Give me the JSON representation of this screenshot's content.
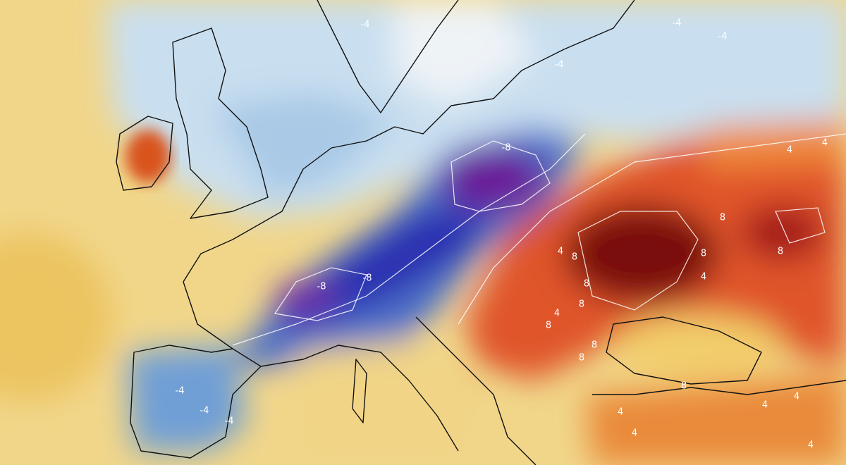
{
  "map": {
    "contour_labels": [
      "-4",
      "-4",
      "-4",
      "-4",
      "-4",
      "-4",
      "-4",
      "-8",
      "-8",
      "-8",
      "4",
      "4",
      "4",
      "4",
      "4",
      "4",
      "4",
      "4",
      "4",
      "4",
      "8",
      "8",
      "8",
      "8",
      "8",
      "8",
      "8",
      "8",
      "8",
      "8"
    ]
  }
}
